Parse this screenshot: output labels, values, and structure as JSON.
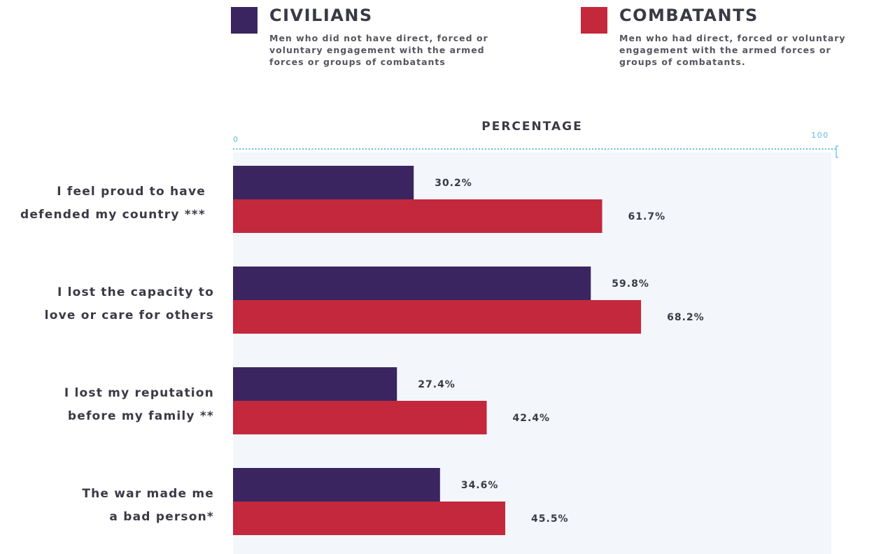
{
  "legend": [
    {
      "title": "CIVILIANS",
      "description": "Men who did not have direct, forced or\nvoluntary engagement with the armed\nforces or groups of combatants",
      "color": "#3a2560"
    },
    {
      "title": "COMBATANTS",
      "description": "Men who had direct, forced or voluntary\nengagement with the armed forces or\ngroups of combatants.",
      "color": "#c4283d"
    }
  ],
  "chart_data": {
    "type": "bar",
    "orientation": "horizontal",
    "title": "PERCENTAGE",
    "categories": [
      "I feel proud to have\ndefended my country ***",
      "I lost the capacity to\nlove or care for others",
      "I lost my reputation\nbefore my family **",
      "The war made me\na bad person*"
    ],
    "series": [
      {
        "name": "CIVILIANS",
        "values": [
          30.2,
          59.8,
          27.4,
          34.6
        ],
        "labels": [
          "30.2%",
          "59.8%",
          "27.4%",
          "34.6%"
        ],
        "color": "#3a2560"
      },
      {
        "name": "COMBATANTS",
        "values": [
          61.7,
          68.2,
          42.4,
          45.5
        ],
        "labels": [
          "61.7%",
          "68.2%",
          "42.4%",
          "45.5%"
        ],
        "color": "#c4283d"
      }
    ],
    "xlim": [
      0,
      100
    ],
    "axis_tick_labels": [
      "0",
      "100"
    ],
    "axis_color": "#5bbce4",
    "plot_background": "#f3f6fb",
    "grid": false,
    "legend_position": "top"
  }
}
